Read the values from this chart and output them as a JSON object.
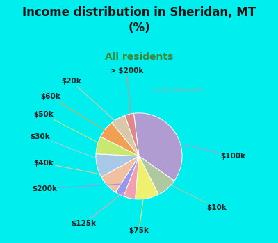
{
  "title": "Income distribution in Sheridan, MT\n(%)",
  "subtitle": "All residents",
  "title_color": "#111111",
  "subtitle_color": "#3a8a3a",
  "background_top": "#00eeee",
  "chart_bg_color": "#dff0e8",
  "watermark": "ⓘ City-Data.com",
  "slices": [
    {
      "label": "$100k",
      "value": 33,
      "color": "#b09cd0"
    },
    {
      "label": "$10k",
      "value": 7,
      "color": "#b0c8a0"
    },
    {
      "label": "$75k",
      "value": 8,
      "color": "#f0f070"
    },
    {
      "label": "$125k",
      "value": 4,
      "color": "#f0a0b0"
    },
    {
      "label": "$200k",
      "value": 3,
      "color": "#9898e8"
    },
    {
      "label": "$40k",
      "value": 7,
      "color": "#f0c0a0"
    },
    {
      "label": "$30k",
      "value": 8,
      "color": "#a8c8e8"
    },
    {
      "label": "$50k",
      "value": 6,
      "color": "#c8e870"
    },
    {
      "label": "$60k",
      "value": 6,
      "color": "#f0a050"
    },
    {
      "label": "$20k",
      "value": 5,
      "color": "#d8c8a8"
    },
    {
      "label": "> $200k",
      "value": 3,
      "color": "#e08888"
    }
  ],
  "label_fontsize": 7.5,
  "title_fontsize": 12,
  "subtitle_fontsize": 10,
  "startangle": 97
}
